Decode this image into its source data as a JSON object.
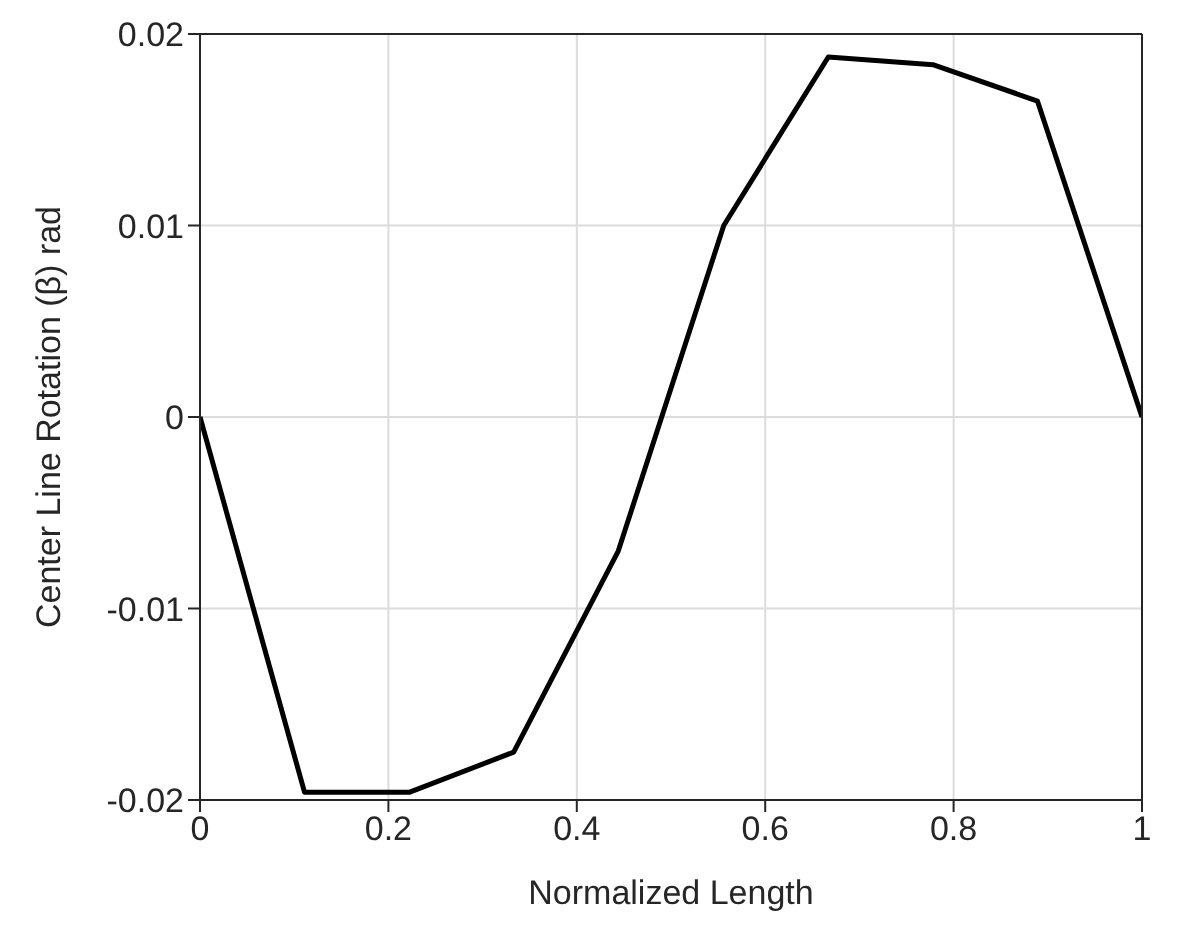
{
  "chart_data": {
    "type": "line",
    "xlabel": "Normalized Length",
    "ylabel": "Center Line Rotation (β) rad",
    "x": [
      0,
      0.111,
      0.222,
      0.333,
      0.444,
      0.556,
      0.667,
      0.778,
      0.889,
      1
    ],
    "series": [
      {
        "color": "#000000",
        "values": [
          0,
          -0.0196,
          -0.0196,
          -0.0175,
          -0.007,
          0.01,
          0.0188,
          0.0184,
          0.0165,
          0
        ]
      }
    ],
    "xlim": [
      0,
      1
    ],
    "xticks": [
      0,
      0.2,
      0.4,
      0.6,
      0.8,
      1
    ],
    "ylim": [
      -0.02,
      0.02
    ],
    "yticks": [
      -0.02,
      -0.01,
      0,
      0.01,
      0.02
    ],
    "grid": true,
    "marker": "none",
    "line_style": "solid"
  }
}
